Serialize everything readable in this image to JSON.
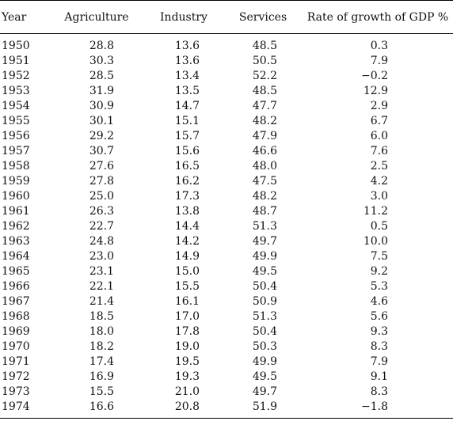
{
  "table": {
    "headers": {
      "year": "Year",
      "agriculture": "Agriculture",
      "industry": "Industry",
      "services": "Services",
      "gdp": "Rate of growth of GDP %"
    },
    "rows": [
      [
        "1950",
        "28.8",
        "13.6",
        "48.5",
        "0.3"
      ],
      [
        "1951",
        "30.3",
        "13.6",
        "50.5",
        "7.9"
      ],
      [
        "1952",
        "28.5",
        "13.4",
        "52.2",
        "−0.2"
      ],
      [
        "1953",
        "31.9",
        "13.5",
        "48.5",
        "12.9"
      ],
      [
        "1954",
        "30.9",
        "14.7",
        "47.7",
        "2.9"
      ],
      [
        "1955",
        "30.1",
        "15.1",
        "48.2",
        "6.7"
      ],
      [
        "1956",
        "29.2",
        "15.7",
        "47.9",
        "6.0"
      ],
      [
        "1957",
        "30.7",
        "15.6",
        "46.6",
        "7.6"
      ],
      [
        "1958",
        "27.6",
        "16.5",
        "48.0",
        "2.5"
      ],
      [
        "1959",
        "27.8",
        "16.2",
        "47.5",
        "4.2"
      ],
      [
        "1960",
        "25.0",
        "17.3",
        "48.2",
        "3.0"
      ],
      [
        "1961",
        "26.3",
        "13.8",
        "48.7",
        "11.2"
      ],
      [
        "1962",
        "22.7",
        "14.4",
        "51.3",
        "0.5"
      ],
      [
        "1963",
        "24.8",
        "14.2",
        "49.7",
        "10.0"
      ],
      [
        "1964",
        "23.0",
        "14.9",
        "49.9",
        "7.5"
      ],
      [
        "1965",
        "23.1",
        "15.0",
        "49.5",
        "9.2"
      ],
      [
        "1966",
        "22.1",
        "15.5",
        "50.4",
        "5.3"
      ],
      [
        "1967",
        "21.4",
        "16.1",
        "50.9",
        "4.6"
      ],
      [
        "1968",
        "18.5",
        "17.0",
        "51.3",
        "5.6"
      ],
      [
        "1969",
        "18.0",
        "17.8",
        "50.4",
        "9.3"
      ],
      [
        "1970",
        "18.2",
        "19.0",
        "50.3",
        "8.3"
      ],
      [
        "1971",
        "17.4",
        "19.5",
        "49.9",
        "7.9"
      ],
      [
        "1972",
        "16.9",
        "19.3",
        "49.5",
        "9.1"
      ],
      [
        "1973",
        "15.5",
        "21.0",
        "49.7",
        "8.3"
      ],
      [
        "1974",
        "16.6",
        "20.8",
        "51.9",
        "−1.8"
      ]
    ]
  }
}
